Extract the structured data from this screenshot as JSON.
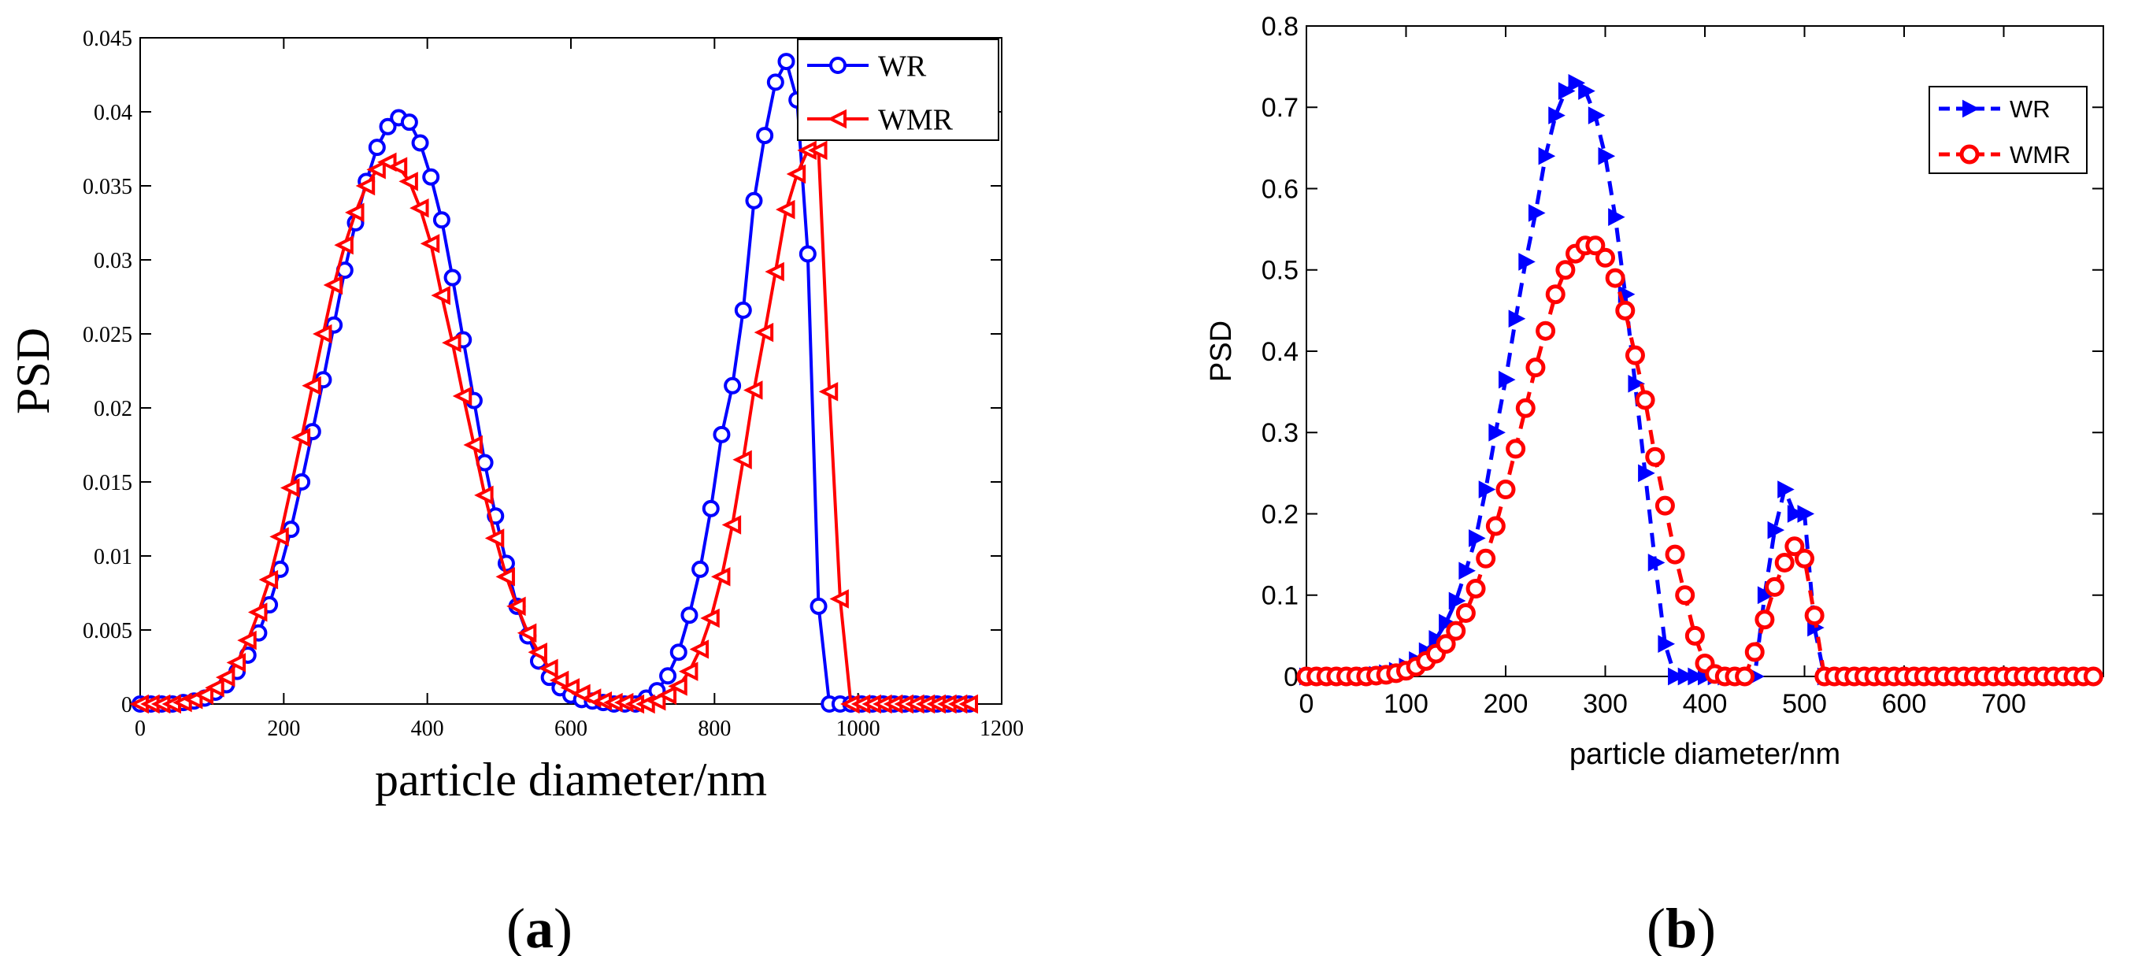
{
  "chart_data": [
    {
      "panel_label": "(a)",
      "type": "line",
      "xlabel": "particle diameter/nm",
      "ylabel": "PSD",
      "xlim": [
        0,
        1200
      ],
      "ylim": [
        0,
        0.045
      ],
      "xticks": [
        0,
        200,
        400,
        600,
        800,
        1000,
        1200
      ],
      "xtick_labels": [
        "0",
        "200",
        "400",
        "600",
        "800",
        "1000",
        "1200"
      ],
      "yticks": [
        0,
        0.005,
        0.01,
        0.015,
        0.02,
        0.025,
        0.03,
        0.035,
        0.04,
        0.045
      ],
      "ytick_labels": [
        "0",
        "0.005",
        "0.01",
        "0.015",
        "0.02",
        "0.025",
        "0.03",
        "0.035",
        "0.04",
        "0.045"
      ],
      "legend_position": "top-right",
      "series": [
        {
          "name": "WR",
          "color": "#0000ff",
          "marker": "circle",
          "line": "solid",
          "x": [
            0,
            15,
            30,
            45,
            60,
            75,
            90,
            105,
            120,
            135,
            150,
            165,
            180,
            195,
            210,
            225,
            240,
            255,
            270,
            285,
            300,
            315,
            330,
            345,
            360,
            375,
            390,
            405,
            420,
            435,
            450,
            465,
            480,
            495,
            510,
            525,
            540,
            555,
            570,
            585,
            600,
            615,
            630,
            645,
            660,
            675,
            690,
            705,
            720,
            735,
            750,
            765,
            780,
            795,
            810,
            825,
            840,
            855,
            870,
            885,
            900,
            915,
            930,
            945,
            960,
            975,
            990,
            1005,
            1020,
            1035,
            1050,
            1065,
            1080,
            1095,
            1110,
            1125,
            1140,
            1155
          ],
          "y": [
            0,
            0,
            0,
            0,
            0.0001,
            0.0002,
            0.0004,
            0.0008,
            0.0013,
            0.0022,
            0.0033,
            0.0048,
            0.0067,
            0.0091,
            0.0118,
            0.015,
            0.0184,
            0.0219,
            0.0256,
            0.0293,
            0.0325,
            0.0353,
            0.0376,
            0.039,
            0.0396,
            0.0393,
            0.0379,
            0.0356,
            0.0327,
            0.0288,
            0.0246,
            0.0205,
            0.0163,
            0.0127,
            0.0095,
            0.0066,
            0.0046,
            0.0029,
            0.0018,
            0.0011,
            0.0006,
            0.0003,
            0.0002,
            0.0001,
            0,
            0,
            0,
            0.0004,
            0.0009,
            0.0019,
            0.0035,
            0.006,
            0.0091,
            0.0132,
            0.0182,
            0.0215,
            0.0266,
            0.034,
            0.0384,
            0.042,
            0.0434,
            0.0408,
            0.0304,
            0.0066,
            0,
            0,
            0,
            0,
            0,
            0,
            0,
            0,
            0,
            0,
            0,
            0,
            0,
            0
          ]
        },
        {
          "name": "WMR",
          "color": "#ff0000",
          "marker": "triangle-left",
          "line": "solid",
          "x": [
            0,
            15,
            30,
            45,
            60,
            75,
            90,
            105,
            120,
            135,
            150,
            165,
            180,
            195,
            210,
            225,
            240,
            255,
            270,
            285,
            300,
            315,
            330,
            345,
            360,
            375,
            390,
            405,
            420,
            435,
            450,
            465,
            480,
            495,
            510,
            525,
            540,
            555,
            570,
            585,
            600,
            615,
            630,
            645,
            660,
            675,
            690,
            705,
            720,
            735,
            750,
            765,
            780,
            795,
            810,
            825,
            840,
            855,
            870,
            885,
            900,
            915,
            930,
            945,
            960,
            975,
            990,
            1005,
            1020,
            1035,
            1050,
            1065,
            1080,
            1095,
            1110,
            1125,
            1140,
            1155
          ],
          "y": [
            0,
            0,
            0,
            0,
            0.0001,
            0.0003,
            0.0006,
            0.0011,
            0.0018,
            0.0028,
            0.0043,
            0.0062,
            0.0084,
            0.0113,
            0.0146,
            0.018,
            0.0215,
            0.025,
            0.0283,
            0.031,
            0.0332,
            0.035,
            0.0361,
            0.0366,
            0.0363,
            0.0353,
            0.0335,
            0.0311,
            0.0276,
            0.0244,
            0.0208,
            0.0175,
            0.0141,
            0.0112,
            0.0086,
            0.0066,
            0.0048,
            0.0035,
            0.0024,
            0.0016,
            0.0011,
            0.0007,
            0.0004,
            0.0002,
            0.0001,
            0.0001,
            0,
            0,
            0.0002,
            0.0006,
            0.0012,
            0.0022,
            0.0037,
            0.0058,
            0.0086,
            0.0121,
            0.0165,
            0.0212,
            0.0251,
            0.0292,
            0.0334,
            0.0358,
            0.0374,
            0.0374,
            0.0211,
            0.0071,
            0,
            0,
            0,
            0,
            0,
            0,
            0,
            0,
            0,
            0,
            0,
            0
          ]
        }
      ]
    },
    {
      "panel_label": "(b)",
      "type": "line",
      "xlabel": "particle diameter/nm",
      "ylabel": "PSD",
      "xlim": [
        0,
        800
      ],
      "ylim": [
        0,
        0.8
      ],
      "xticks": [
        0,
        100,
        200,
        300,
        400,
        500,
        600,
        700
      ],
      "xtick_labels": [
        "0",
        "100",
        "200",
        "300",
        "400",
        "500",
        "600",
        "700"
      ],
      "yticks": [
        0,
        0.1,
        0.2,
        0.3,
        0.4,
        0.5,
        0.6,
        0.7,
        0.8
      ],
      "ytick_labels": [
        "0",
        "0.1",
        "0.2",
        "0.3",
        "0.4",
        "0.5",
        "0.6",
        "0.7",
        "0.8"
      ],
      "legend_position": "top-right",
      "series": [
        {
          "name": "WR",
          "color": "#0000ff",
          "marker": "triangle-right",
          "line": "dashed",
          "x": [
            0,
            10,
            20,
            30,
            40,
            50,
            60,
            70,
            80,
            90,
            100,
            110,
            120,
            130,
            140,
            150,
            160,
            170,
            180,
            190,
            200,
            210,
            220,
            230,
            240,
            250,
            260,
            270,
            280,
            290,
            300,
            310,
            320,
            330,
            340,
            350,
            360,
            370,
            380,
            390,
            400,
            410,
            420,
            430,
            440,
            450,
            460,
            470,
            480,
            490,
            500,
            510,
            520,
            530,
            540,
            550,
            560,
            570,
            580,
            590,
            600,
            610,
            620,
            630,
            640,
            650,
            660,
            670,
            680,
            690,
            700,
            710,
            720,
            730,
            740,
            750,
            760,
            770,
            780,
            790
          ],
          "y": [
            0,
            0,
            0,
            0,
            0,
            0,
            0.001,
            0.002,
            0.004,
            0.007,
            0.012,
            0.02,
            0.031,
            0.046,
            0.066,
            0.093,
            0.13,
            0.17,
            0.23,
            0.3,
            0.365,
            0.44,
            0.51,
            0.57,
            0.64,
            0.69,
            0.72,
            0.73,
            0.72,
            0.69,
            0.64,
            0.565,
            0.47,
            0.36,
            0.25,
            0.14,
            0.04,
            0,
            0,
            0,
            0,
            0,
            0,
            0,
            0,
            0,
            0.1,
            0.18,
            0.23,
            0.2,
            0.2,
            0.06,
            0,
            0,
            0,
            0,
            0,
            0,
            0,
            0,
            0,
            0,
            0,
            0,
            0,
            0,
            0,
            0,
            0,
            0,
            0,
            0,
            0,
            0,
            0,
            0,
            0,
            0,
            0,
            0
          ]
        },
        {
          "name": "WMR",
          "color": "#ff0000",
          "marker": "circle",
          "line": "dashed",
          "x": [
            0,
            10,
            20,
            30,
            40,
            50,
            60,
            70,
            80,
            90,
            100,
            110,
            120,
            130,
            140,
            150,
            160,
            170,
            180,
            190,
            200,
            210,
            220,
            230,
            240,
            250,
            260,
            270,
            280,
            290,
            300,
            310,
            320,
            330,
            340,
            350,
            360,
            370,
            380,
            390,
            400,
            410,
            420,
            430,
            440,
            450,
            460,
            470,
            480,
            490,
            500,
            510,
            520,
            530,
            540,
            550,
            560,
            570,
            580,
            590,
            600,
            610,
            620,
            630,
            640,
            650,
            660,
            670,
            680,
            690,
            700,
            710,
            720,
            730,
            740,
            750,
            760,
            770,
            780,
            790
          ],
          "y": [
            0,
            0,
            0,
            0,
            0,
            0,
            0,
            0.001,
            0.002,
            0.004,
            0.007,
            0.012,
            0.019,
            0.028,
            0.04,
            0.056,
            0.078,
            0.108,
            0.145,
            0.185,
            0.23,
            0.28,
            0.33,
            0.38,
            0.425,
            0.47,
            0.5,
            0.52,
            0.53,
            0.53,
            0.515,
            0.49,
            0.45,
            0.395,
            0.34,
            0.27,
            0.21,
            0.15,
            0.1,
            0.05,
            0.016,
            0.003,
            0,
            0,
            0,
            0.03,
            0.07,
            0.11,
            0.14,
            0.16,
            0.145,
            0.075,
            0,
            0,
            0,
            0,
            0,
            0,
            0,
            0,
            0,
            0,
            0,
            0,
            0,
            0,
            0,
            0,
            0,
            0,
            0,
            0,
            0,
            0,
            0,
            0,
            0,
            0,
            0,
            0
          ]
        }
      ]
    }
  ]
}
